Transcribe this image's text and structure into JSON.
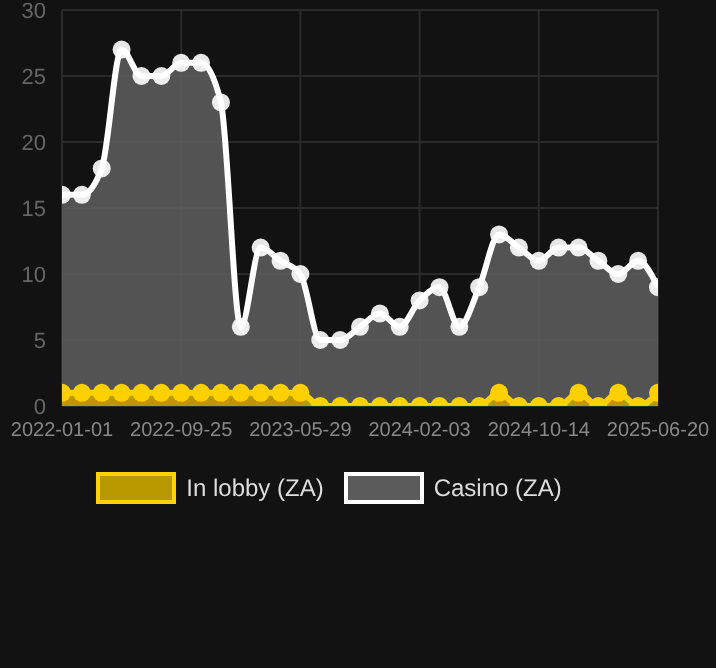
{
  "chart_data": {
    "type": "area",
    "categories": [
      "2022-01-01",
      null,
      null,
      null,
      null,
      null,
      "2022-09-25",
      null,
      null,
      null,
      null,
      null,
      "2023-05-29",
      null,
      null,
      null,
      null,
      null,
      "2024-02-03",
      null,
      null,
      null,
      null,
      null,
      "2024-10-14",
      null,
      null,
      null,
      null,
      null,
      "2025-06-20"
    ],
    "series": [
      {
        "name": "In lobby (ZA)",
        "color": "#ffd000",
        "values": [
          1,
          1,
          1,
          1,
          1,
          1,
          1,
          1,
          1,
          1,
          1,
          1,
          1,
          0,
          0,
          0,
          0,
          0,
          0,
          0,
          0,
          0,
          1,
          0,
          0,
          0,
          1,
          0,
          1,
          0,
          1
        ]
      },
      {
        "name": "Casino (ZA)",
        "color": "#ffffff",
        "values": [
          16,
          16,
          18,
          27,
          25,
          25,
          26,
          26,
          23,
          6,
          12,
          11,
          10,
          5,
          5,
          6,
          7,
          6,
          8,
          9,
          6,
          9,
          13,
          12,
          11,
          12,
          12,
          11,
          10,
          11,
          9
        ]
      }
    ],
    "ylim": [
      0,
      30
    ],
    "yticks": [
      0,
      5,
      10,
      15,
      20,
      25,
      30
    ],
    "grid": true,
    "legend": "bottom",
    "marker": "circle"
  }
}
